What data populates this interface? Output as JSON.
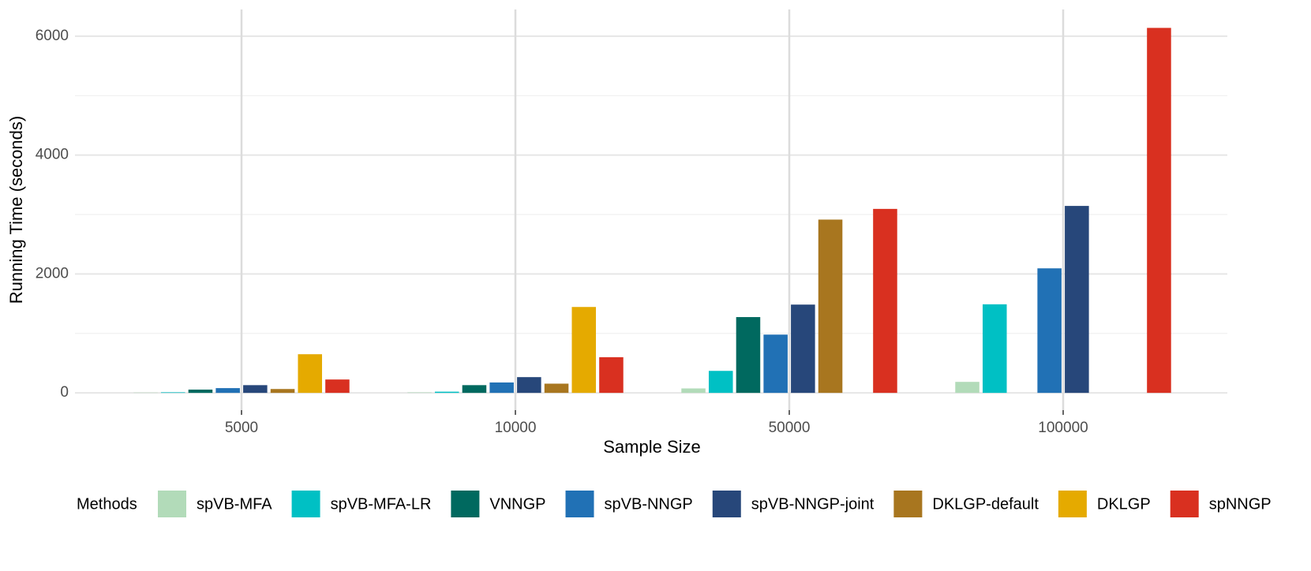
{
  "chart_data": {
    "type": "bar",
    "x_label": "Sample Size",
    "y_label": "Running Time (seconds)",
    "categories": [
      "5000",
      "10000",
      "50000",
      "100000"
    ],
    "legend_title": "Methods",
    "series": [
      {
        "name": "spVB-MFA",
        "color": "#b2dbb9",
        "values": [
          5,
          8,
          75,
          185
        ]
      },
      {
        "name": "spVB-MFA-LR",
        "color": "#00c0c4",
        "values": [
          10,
          20,
          370,
          1490
        ]
      },
      {
        "name": "VNNGP",
        "color": "#00695f",
        "values": [
          55,
          130,
          1275,
          null
        ]
      },
      {
        "name": "spVB-NNGP",
        "color": "#2171b5",
        "values": [
          80,
          175,
          980,
          2095
        ]
      },
      {
        "name": "spVB-NNGP-joint",
        "color": "#27477a",
        "values": [
          130,
          265,
          1485,
          3145
        ]
      },
      {
        "name": "DKLGP-default",
        "color": "#a8761f",
        "values": [
          65,
          155,
          2915,
          null
        ]
      },
      {
        "name": "DKLGP",
        "color": "#e5aa00",
        "values": [
          650,
          1445,
          null,
          null
        ]
      },
      {
        "name": "spNNGP",
        "color": "#d93020",
        "values": [
          225,
          600,
          3095,
          6140
        ]
      }
    ],
    "ylim": [
      -290,
      6450
    ],
    "yticks": [
      0,
      2000,
      4000,
      6000
    ],
    "grid": true,
    "minor_grid": true,
    "legend_position": "bottom"
  }
}
